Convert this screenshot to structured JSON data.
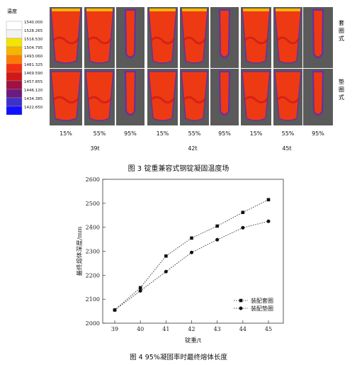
{
  "figure3": {
    "legend_title": "温度",
    "legend_values": [
      "1540.000",
      "1528.265",
      "1516.530",
      "1504.795",
      "1493.060",
      "1481.325",
      "1469.590",
      "1457.855",
      "1446.120",
      "1434.385",
      "1422.650"
    ],
    "legend_colors": [
      "#ffffff",
      "#f2f2f2",
      "#f4e400",
      "#f7b400",
      "#ff7a00",
      "#f43010",
      "#d01818",
      "#a01040",
      "#6a1a80",
      "#4030c8",
      "#1010ff"
    ],
    "row_labels": [
      "套圈式",
      "垫圈式"
    ],
    "pct_labels": [
      "15%",
      "55%",
      "95%",
      "15%",
      "55%",
      "95%",
      "15%",
      "55%",
      "95%"
    ],
    "weight_labels": [
      "39t",
      "42t",
      "45t"
    ],
    "caption": "图 3 锭重兼容式钢锭凝固温度场"
  },
  "chart_data": {
    "type": "line",
    "xlabel": "锭重/t",
    "ylabel": "最终熔体深度/mm",
    "x": [
      39,
      40,
      41,
      42,
      43,
      44,
      45
    ],
    "xlim": [
      39,
      45
    ],
    "ylim": [
      2000,
      2600
    ],
    "yticks": [
      2000,
      2100,
      2200,
      2300,
      2400,
      2500,
      2600
    ],
    "series": [
      {
        "name": "装配套圈",
        "marker": "square",
        "values": [
          2055,
          2148,
          2280,
          2355,
          2405,
          2462,
          2515
        ]
      },
      {
        "name": "装配垫圈",
        "marker": "circle",
        "values": [
          2055,
          2135,
          2215,
          2295,
          2348,
          2398,
          2425
        ]
      }
    ],
    "legend_position": "bottom-right",
    "grid": false,
    "caption": "图 4   95%凝固率时最终熔体长度"
  }
}
